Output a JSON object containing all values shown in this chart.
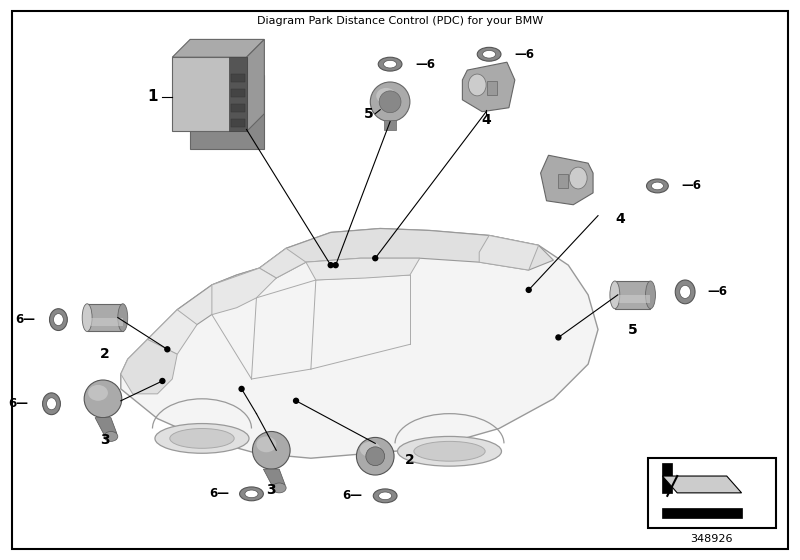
{
  "title": "Diagram Park Distance Control (PDC) for your BMW",
  "background_color": "#ffffff",
  "border_color": "#000000",
  "part_number": "348926",
  "car_body_color": "#f0f0f0",
  "car_outline_color": "#888888",
  "component_dark": "#777777",
  "component_mid": "#aaaaaa",
  "component_light": "#cccccc",
  "component_top": "#bbbbbb",
  "line_color": "#000000",
  "text_color": "#000000",
  "font_size_label": 9,
  "font_size_number": 8,
  "font_size_title": 8,
  "font_size_part": 8
}
